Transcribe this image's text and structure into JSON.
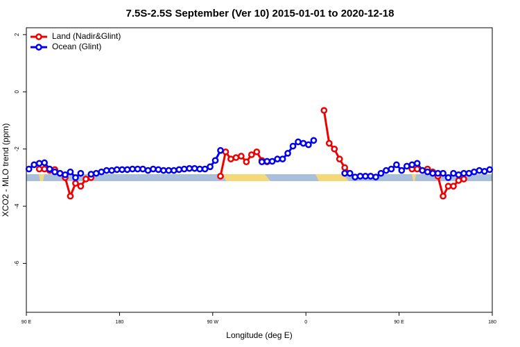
{
  "chart_data": {
    "type": "line",
    "title": "7.5S-2.5S September (Ver 10)   2015-01-01 to 2020-12-18",
    "x_label": "Longitude (deg E)",
    "y_label": "XCO2 - MLO trend (ppm)",
    "xlim": [
      90,
      540
    ],
    "xticks": [
      {
        "value": 90,
        "label": "90 E"
      },
      {
        "value": 180,
        "label": "180"
      },
      {
        "value": 270,
        "label": "90 W"
      },
      {
        "value": 360,
        "label": "0"
      },
      {
        "value": 450,
        "label": "90 E"
      },
      {
        "value": 540,
        "label": "180"
      }
    ],
    "ylim": [
      -7.71,
      2.24
    ],
    "yticks": [
      2,
      0,
      -2,
      -4,
      -6
    ],
    "legend": "top-left",
    "x": [
      92.5,
      97.5,
      102.5,
      107.5,
      112.5,
      117.5,
      122.5,
      127.5,
      132.5,
      137.5,
      142.5,
      147.5,
      152.5,
      157.5,
      162.5,
      167.5,
      172.5,
      177.5,
      182.5,
      187.5,
      192.5,
      197.5,
      202.5,
      207.5,
      212.5,
      217.5,
      222.5,
      227.5,
      232.5,
      237.5,
      242.5,
      247.5,
      252.5,
      257.5,
      262.5,
      267.5,
      272.5,
      277.5,
      282.5,
      287.5,
      292.5,
      297.5,
      302.5,
      307.5,
      312.5,
      317.5,
      322.5,
      327.5,
      332.5,
      337.5,
      342.5,
      347.5,
      352.5,
      357.5,
      362.5,
      367.5,
      372.5,
      377.5,
      382.5,
      387.5,
      392.5,
      397.5,
      402.5,
      407.5,
      412.5,
      417.5,
      422.5,
      427.5,
      432.5,
      437.5,
      442.5,
      447.5,
      452.5,
      457.5,
      462.5,
      467.5,
      472.5,
      477.5,
      482.5,
      487.5,
      492.5,
      497.5,
      502.5,
      507.5,
      512.5,
      517.5,
      522.5,
      527.5,
      532.5,
      537.5
    ],
    "series": [
      {
        "name": "Land (Nadir&Glint)",
        "color": "#ee0000",
        "values": [
          null,
          null,
          -2.7,
          -2.7,
          -2.75,
          -2.72,
          -2.85,
          -3.0,
          -3.65,
          -3.2,
          -3.3,
          -3.05,
          -3.0,
          null,
          null,
          null,
          null,
          null,
          null,
          null,
          null,
          null,
          null,
          null,
          null,
          null,
          null,
          null,
          null,
          null,
          null,
          null,
          null,
          null,
          null,
          null,
          null,
          -2.95,
          -2.1,
          -2.35,
          -2.3,
          -2.25,
          -2.45,
          -2.2,
          -2.1,
          -2.4,
          -2.45,
          null,
          null,
          null,
          null,
          null,
          null,
          null,
          null,
          null,
          null,
          -0.65,
          -1.8,
          -2.0,
          -2.35,
          -2.65,
          -2.85,
          null,
          null,
          null,
          null,
          null,
          null,
          null,
          null,
          null,
          null,
          null,
          -2.7,
          -2.7,
          -2.75,
          -2.7,
          -2.8,
          -2.95,
          -3.65,
          -3.3,
          -3.3,
          -3.1,
          -3.05,
          null,
          null,
          null,
          null,
          null
        ]
      },
      {
        "name": "Ocean (Glint)",
        "color": "#0000ee",
        "values": [
          -2.7,
          -2.55,
          -2.5,
          -2.48,
          -2.7,
          -2.8,
          -2.85,
          -2.9,
          -2.8,
          -3.0,
          -2.85,
          null,
          -2.88,
          -2.85,
          -2.8,
          -2.75,
          -2.75,
          -2.72,
          -2.72,
          -2.72,
          -2.7,
          -2.7,
          -2.7,
          -2.75,
          -2.7,
          -2.72,
          -2.75,
          -2.75,
          -2.75,
          -2.72,
          -2.7,
          -2.68,
          -2.68,
          -2.7,
          -2.7,
          -2.62,
          -2.4,
          -2.05,
          null,
          null,
          null,
          null,
          null,
          null,
          null,
          -2.45,
          -2.43,
          -2.43,
          -2.35,
          -2.35,
          -2.15,
          -1.9,
          -1.75,
          -1.8,
          -1.85,
          -1.7,
          null,
          null,
          null,
          null,
          null,
          -2.85,
          -2.85,
          -2.98,
          -2.95,
          -2.95,
          -2.95,
          -2.98,
          -2.85,
          -2.75,
          -2.7,
          -2.55,
          -2.75,
          -2.6,
          -2.55,
          -2.5,
          -2.75,
          -2.8,
          -2.85,
          -2.85,
          -2.85,
          -3.0,
          -2.85,
          -2.9,
          -2.85,
          -2.85,
          -2.8,
          -2.75,
          -2.78,
          -2.72
        ]
      }
    ]
  }
}
